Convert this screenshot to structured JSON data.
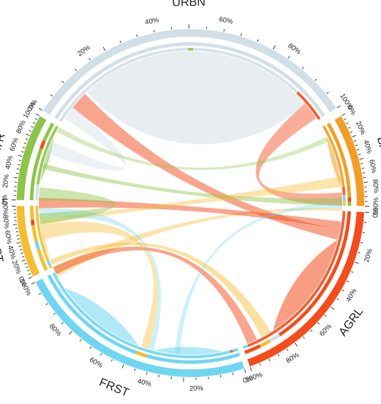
{
  "segments": [
    {
      "id": "URBN",
      "label": "URBN",
      "color": "#d3dfe6"
    },
    {
      "id": "BARR",
      "label": "BARR",
      "color": "#f29e24"
    },
    {
      "id": "AGRL",
      "label": "AGRL",
      "color": "#f44c1c"
    },
    {
      "id": "FRST",
      "label": "FRST",
      "color": "#6fd6f2"
    },
    {
      "id": "PAST",
      "label": "PAST",
      "color": "#f5bd30"
    },
    {
      "id": "WATR",
      "label": "WATR",
      "color": "#8cc54a"
    }
  ],
  "percent_labels": [
    "0%",
    "20%",
    "40%",
    "60%",
    "80%",
    "100%"
  ],
  "chart_data": {
    "type": "chord",
    "categories": [
      "URBN",
      "BARR",
      "AGRL",
      "FRST",
      "PAST",
      "WATR"
    ]
  }
}
